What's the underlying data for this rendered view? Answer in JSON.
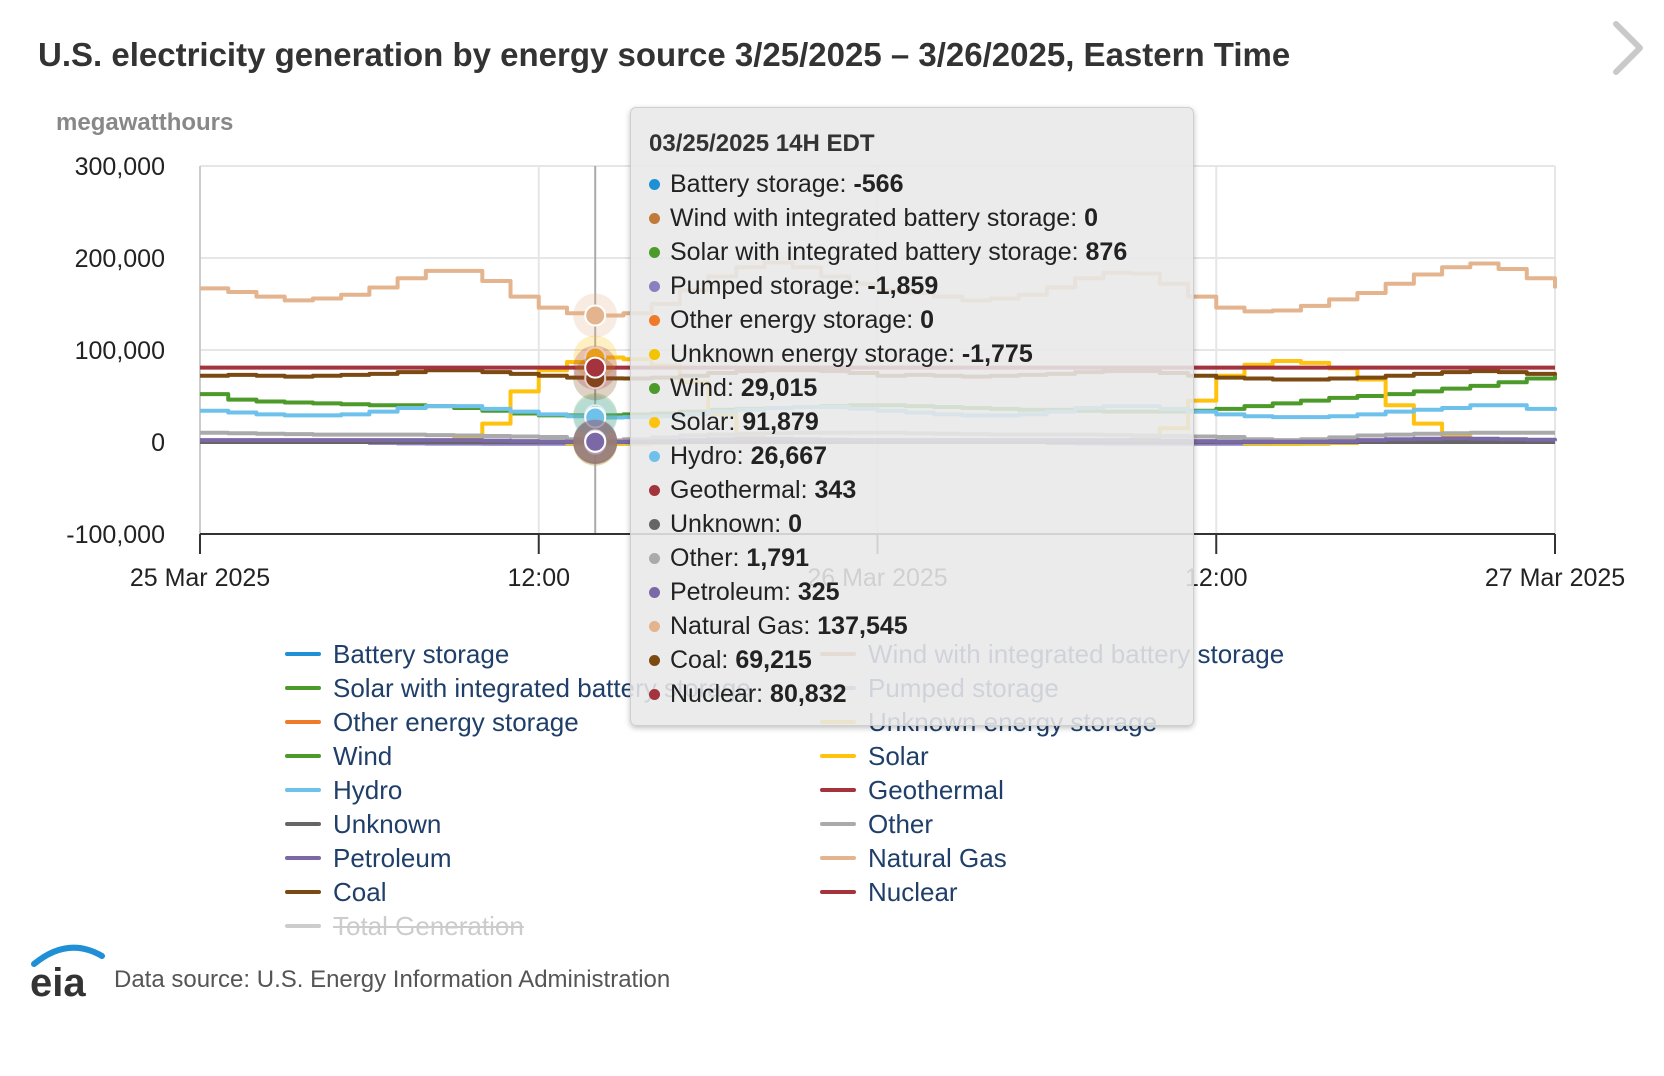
{
  "title": "U.S. electricity generation by energy source 3/25/2025 – 3/26/2025, Eastern Time",
  "footer": {
    "logo_text": "eia",
    "source": "Data source: U.S. Energy Information Administration"
  },
  "tooltip": {
    "header": "03/25/2025 14H EDT",
    "rows": [
      {
        "label": "Battery storage: ",
        "value": "-566",
        "color": "#1f8fd6"
      },
      {
        "label": "Wind with integrated battery storage: ",
        "value": "0",
        "color": "#c07a3a"
      },
      {
        "label": "Solar with integrated battery storage: ",
        "value": "876",
        "color": "#4c9a2a"
      },
      {
        "label": "Pumped storage: ",
        "value": "-1,859",
        "color": "#8a7fbf"
      },
      {
        "label": "Other energy storage: ",
        "value": "0",
        "color": "#f07a2a"
      },
      {
        "label": "Unknown energy storage: ",
        "value": "-1,775",
        "color": "#f2c500"
      },
      {
        "label": "Wind: ",
        "value": "29,015",
        "color": "#4c9a2a"
      },
      {
        "label": "Solar: ",
        "value": "91,879",
        "color": "#ffc20e"
      },
      {
        "label": "Hydro: ",
        "value": "26,667",
        "color": "#6ec1ea"
      },
      {
        "label": "Geothermal: ",
        "value": "343",
        "color": "#a3333d"
      },
      {
        "label": "Unknown: ",
        "value": "0",
        "color": "#666666"
      },
      {
        "label": "Other: ",
        "value": "1,791",
        "color": "#aaaaaa"
      },
      {
        "label": "Petroleum: ",
        "value": "325",
        "color": "#7b68a6"
      },
      {
        "label": "Natural Gas: ",
        "value": "137,545",
        "color": "#e3b48d"
      },
      {
        "label": "Coal: ",
        "value": "69,215",
        "color": "#7a4a12"
      },
      {
        "label": "Nuclear: ",
        "value": "80,832",
        "color": "#a3333d"
      }
    ]
  },
  "chart_data": {
    "type": "line",
    "ylabel": "megawatthours",
    "ylim": [
      -100000,
      300000
    ],
    "y_ticks": [
      "300,000",
      "200,000",
      "100,000",
      "0",
      "-100,000"
    ],
    "y_tick_values": [
      300000,
      200000,
      100000,
      0,
      -100000
    ],
    "x_ticks": [
      "25 Mar 2025",
      "12:00",
      "26 Mar 2025",
      "12:00",
      "27 Mar 2025"
    ],
    "x_tick_hours": [
      0,
      12,
      24,
      36,
      48
    ],
    "x_range_hours": [
      0,
      48
    ],
    "grid": true,
    "legend_placement": "bottom",
    "highlight_hour": 14,
    "x_hours": [
      0,
      1,
      2,
      3,
      4,
      5,
      6,
      7,
      8,
      9,
      10,
      11,
      12,
      13,
      14,
      15,
      16,
      17,
      18,
      19,
      20,
      21,
      22,
      23,
      24,
      25,
      26,
      27,
      28,
      29,
      30,
      31,
      32,
      33,
      34,
      35,
      36,
      37,
      38,
      39,
      40,
      41,
      42,
      43,
      44,
      45,
      46,
      47,
      48
    ],
    "series": [
      {
        "name": "Battery storage",
        "color": "#1f8fd6",
        "hidden": false,
        "values": [
          0,
          0,
          0,
          0,
          0,
          0,
          0,
          0,
          0,
          0,
          0,
          0,
          0,
          -300,
          -566,
          -400,
          -300,
          0,
          0,
          0,
          0,
          0,
          0,
          0,
          0,
          0,
          0,
          0,
          0,
          0,
          0,
          0,
          0,
          0,
          0,
          0,
          0,
          0,
          0,
          0,
          0,
          0,
          0,
          0,
          0,
          0,
          0,
          0,
          0
        ]
      },
      {
        "name": "Wind with integrated battery storage",
        "color": "#c07a3a",
        "hidden": false,
        "values": [
          0,
          0,
          0,
          0,
          0,
          0,
          0,
          0,
          0,
          0,
          0,
          0,
          0,
          0,
          0,
          0,
          0,
          0,
          0,
          0,
          0,
          0,
          0,
          0,
          0,
          0,
          0,
          0,
          0,
          0,
          0,
          0,
          0,
          0,
          0,
          0,
          0,
          0,
          0,
          0,
          0,
          0,
          0,
          0,
          0,
          0,
          0,
          0,
          0
        ]
      },
      {
        "name": "Solar with integrated battery storage",
        "color": "#4c9a2a",
        "hidden": false,
        "values": [
          0,
          0,
          0,
          0,
          0,
          0,
          0,
          0,
          0,
          0,
          100,
          400,
          700,
          850,
          876,
          850,
          700,
          400,
          100,
          0,
          0,
          0,
          0,
          0,
          0,
          0,
          0,
          0,
          0,
          0,
          0,
          0,
          0,
          0,
          100,
          400,
          700,
          850,
          870,
          850,
          700,
          400,
          100,
          0,
          0,
          0,
          0,
          0,
          0
        ]
      },
      {
        "name": "Pumped storage",
        "color": "#8a7fbf",
        "hidden": false,
        "values": [
          800,
          1200,
          1500,
          1500,
          1000,
          0,
          -1000,
          -1500,
          -1700,
          -1800,
          -1900,
          -1900,
          -1900,
          -1880,
          -1859,
          -1700,
          -1000,
          500,
          1500,
          2000,
          2000,
          1800,
          1500,
          1200,
          800,
          1200,
          1500,
          1500,
          1000,
          0,
          -1000,
          -1500,
          -1700,
          -1800,
          -1900,
          -1900,
          -1900,
          -1880,
          -1850,
          -1700,
          -1000,
          500,
          1500,
          2000,
          2000,
          1800,
          1500,
          1200,
          800
        ]
      },
      {
        "name": "Other energy storage",
        "color": "#f07a2a",
        "hidden": false,
        "values": [
          0,
          0,
          0,
          0,
          0,
          0,
          0,
          0,
          0,
          0,
          0,
          0,
          0,
          0,
          0,
          0,
          0,
          0,
          0,
          0,
          0,
          0,
          0,
          0,
          0,
          0,
          0,
          0,
          0,
          0,
          0,
          0,
          0,
          0,
          0,
          0,
          0,
          0,
          0,
          0,
          0,
          0,
          0,
          0,
          0,
          0,
          0,
          0,
          0
        ]
      },
      {
        "name": "Unknown energy storage",
        "color": "#f2c500",
        "hidden": false,
        "values": [
          0,
          0,
          0,
          0,
          0,
          0,
          0,
          0,
          0,
          0,
          0,
          0,
          0,
          -1500,
          -1775,
          -1500,
          -1000,
          0,
          0,
          0,
          0,
          0,
          0,
          0,
          0,
          0,
          0,
          0,
          0,
          0,
          0,
          0,
          0,
          0,
          0,
          0,
          0,
          -1500,
          -1700,
          -1500,
          -1000,
          0,
          0,
          0,
          0,
          0,
          0,
          0,
          0
        ]
      },
      {
        "name": "Wind",
        "color": "#4c9a2a",
        "hidden": false,
        "values": [
          52000,
          46000,
          44000,
          43000,
          42000,
          41000,
          40000,
          40000,
          39000,
          37000,
          34000,
          31000,
          29000,
          29000,
          29015,
          30000,
          31000,
          33000,
          35000,
          36000,
          37000,
          38000,
          39000,
          40000,
          40000,
          39000,
          38000,
          37000,
          36000,
          35000,
          35000,
          34000,
          33000,
          33000,
          33000,
          34000,
          36000,
          39000,
          42000,
          45000,
          48000,
          50000,
          52000,
          55000,
          58000,
          61000,
          65000,
          69000,
          72000
        ]
      },
      {
        "name": "Solar",
        "color": "#ffc20e",
        "hidden": false,
        "values": [
          0,
          0,
          0,
          0,
          0,
          0,
          0,
          0,
          0,
          5000,
          20000,
          55000,
          78000,
          87000,
          91879,
          90000,
          83000,
          65000,
          30000,
          5000,
          0,
          0,
          0,
          0,
          0,
          0,
          0,
          0,
          0,
          0,
          0,
          0,
          0,
          3000,
          15000,
          45000,
          72000,
          84000,
          88000,
          86000,
          80000,
          68000,
          40000,
          20000,
          8000,
          3000,
          0,
          0,
          0
        ]
      },
      {
        "name": "Hydro",
        "color": "#6ec1ea",
        "hidden": false,
        "values": [
          34000,
          32000,
          30000,
          29000,
          29000,
          30000,
          33000,
          37000,
          39000,
          39000,
          36000,
          33000,
          30000,
          28000,
          26667,
          27000,
          28000,
          30000,
          33000,
          35000,
          37000,
          38000,
          38000,
          36000,
          34000,
          32000,
          30000,
          29000,
          29000,
          30000,
          33000,
          37000,
          39000,
          39000,
          36000,
          33000,
          30000,
          28000,
          27000,
          27000,
          28000,
          30000,
          33000,
          35000,
          37000,
          40000,
          40000,
          36000,
          34000
        ]
      },
      {
        "name": "Geothermal",
        "color": "#a3333d",
        "hidden": false,
        "values": [
          343,
          343,
          343,
          343,
          343,
          343,
          343,
          343,
          343,
          343,
          343,
          343,
          343,
          343,
          343,
          343,
          343,
          343,
          343,
          343,
          343,
          343,
          343,
          343,
          343,
          343,
          343,
          343,
          343,
          343,
          343,
          343,
          343,
          343,
          343,
          343,
          343,
          343,
          343,
          343,
          343,
          343,
          343,
          343,
          343,
          343,
          343,
          343,
          343
        ]
      },
      {
        "name": "Unknown",
        "color": "#666666",
        "hidden": false,
        "values": [
          0,
          0,
          0,
          0,
          0,
          0,
          0,
          0,
          0,
          0,
          0,
          0,
          0,
          0,
          0,
          0,
          0,
          0,
          0,
          0,
          0,
          0,
          0,
          0,
          0,
          0,
          0,
          0,
          0,
          0,
          0,
          0,
          0,
          0,
          0,
          0,
          0,
          0,
          0,
          0,
          0,
          0,
          0,
          0,
          0,
          0,
          0,
          0,
          0
        ]
      },
      {
        "name": "Other",
        "color": "#aaaaaa",
        "hidden": false,
        "values": [
          10000,
          9500,
          9000,
          8500,
          8000,
          8000,
          8000,
          8000,
          7500,
          7000,
          6500,
          6000,
          5500,
          3000,
          1791,
          3000,
          5000,
          7000,
          8000,
          9000,
          9500,
          10000,
          10000,
          10000,
          10000,
          9500,
          9000,
          8500,
          8000,
          8000,
          8000,
          8000,
          7500,
          7000,
          6500,
          6000,
          5500,
          3000,
          2000,
          3000,
          5000,
          7000,
          8000,
          9000,
          9500,
          10000,
          10000,
          10000,
          10000
        ]
      },
      {
        "name": "Petroleum",
        "color": "#7b68a6",
        "hidden": false,
        "values": [
          2000,
          2000,
          2000,
          2000,
          2000,
          2000,
          2000,
          2000,
          2000,
          2000,
          1500,
          1000,
          500,
          400,
          325,
          400,
          800,
          2000,
          3000,
          3500,
          3500,
          3000,
          2500,
          2000,
          2000,
          2000,
          2000,
          2000,
          2000,
          2000,
          2000,
          2000,
          2000,
          2000,
          1500,
          1000,
          500,
          400,
          300,
          400,
          800,
          2000,
          3000,
          3500,
          4000,
          3500,
          3000,
          2500,
          2000
        ]
      },
      {
        "name": "Natural Gas",
        "color": "#e3b48d",
        "hidden": false,
        "values": [
          167000,
          163000,
          158000,
          154000,
          156000,
          160000,
          168000,
          178000,
          186000,
          186000,
          175000,
          158000,
          146000,
          140000,
          137545,
          140000,
          150000,
          165000,
          180000,
          190000,
          195000,
          190000,
          180000,
          172000,
          165000,
          162000,
          158000,
          154000,
          156000,
          160000,
          168000,
          178000,
          184000,
          183000,
          172000,
          158000,
          146000,
          142000,
          143000,
          148000,
          155000,
          162000,
          172000,
          182000,
          190000,
          194000,
          188000,
          178000,
          167000
        ]
      },
      {
        "name": "Coal",
        "color": "#7a4a12",
        "hidden": false,
        "values": [
          72000,
          73000,
          72000,
          71000,
          72000,
          73000,
          74000,
          76000,
          78000,
          78000,
          76000,
          74000,
          72000,
          70000,
          69215,
          69000,
          70000,
          72000,
          75000,
          77000,
          78000,
          78000,
          77000,
          75000,
          72000,
          73000,
          72000,
          71000,
          72000,
          73000,
          74000,
          76000,
          77000,
          77000,
          75000,
          72000,
          70000,
          69000,
          68000,
          68000,
          69000,
          70000,
          72000,
          74000,
          76000,
          77000,
          76000,
          74000,
          72000
        ]
      },
      {
        "name": "Nuclear",
        "color": "#a3333d",
        "hidden": false,
        "values": [
          80832,
          80832,
          80832,
          80832,
          80832,
          80832,
          80832,
          80832,
          80832,
          80832,
          80832,
          80832,
          80832,
          80832,
          80832,
          80832,
          80832,
          80832,
          80832,
          80832,
          80832,
          80832,
          80832,
          80832,
          80832,
          80832,
          80832,
          80832,
          80832,
          80832,
          80832,
          80832,
          80832,
          80832,
          80832,
          80832,
          80832,
          80832,
          80832,
          80832,
          80832,
          80832,
          80832,
          80832,
          80832,
          80832,
          80832,
          80832,
          80832
        ]
      },
      {
        "name": "Total Generation",
        "color": "#cccccc",
        "hidden": true,
        "values": []
      }
    ]
  }
}
